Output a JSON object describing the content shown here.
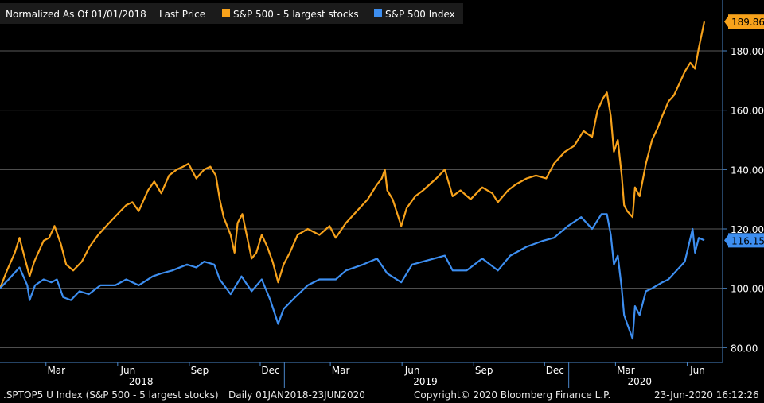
{
  "legend": {
    "prefix": "Normalized As Of 01/01/2018",
    "price_label": "Last Price",
    "series_1": "S&P 500 - 5 largest stocks",
    "series_2": "S&P 500 Index"
  },
  "colors": {
    "series_1": "#f7a21b",
    "series_2": "#3d8ef0",
    "grid": "#5a5a5a",
    "axis": "#4a86c8",
    "text": "#ffffff"
  },
  "footer": {
    "ticker": ".SPTOP5 U Index (S&P 500 - 5 largest stocks)",
    "range": "Daily 01JAN2018-23JUN2020",
    "copyright": "Copyright© 2020 Bloomberg Finance L.P.",
    "timestamp": "23-Jun-2020 16:12:26"
  },
  "chart_data": {
    "type": "line",
    "x_range": [
      "2018-01-01",
      "2020-06-23"
    ],
    "ylim": [
      75,
      195
    ],
    "grid": true,
    "y_ticks": [
      80,
      100,
      120,
      140,
      160,
      180
    ],
    "y_tick_labels": [
      "80.00",
      "100.00",
      "120.00",
      "140.00",
      "160.00",
      "180.00"
    ],
    "x_month_labels": [
      {
        "label": "Mar",
        "date": "2018-03-01"
      },
      {
        "label": "Jun",
        "date": "2018-06-01"
      },
      {
        "label": "Sep",
        "date": "2018-09-01"
      },
      {
        "label": "Dec",
        "date": "2018-12-01"
      },
      {
        "label": "Mar",
        "date": "2019-03-01"
      },
      {
        "label": "Jun",
        "date": "2019-06-01"
      },
      {
        "label": "Sep",
        "date": "2019-09-01"
      },
      {
        "label": "Dec",
        "date": "2019-12-01"
      },
      {
        "label": "Mar",
        "date": "2020-03-01"
      },
      {
        "label": "Jun",
        "date": "2020-06-01"
      }
    ],
    "x_year_labels": [
      {
        "label": "2018",
        "date": "2018-07-01"
      },
      {
        "label": "2019",
        "date": "2019-07-01"
      },
      {
        "label": "2020",
        "date": "2020-04-01"
      }
    ],
    "last_values": {
      "series_1": "189.86",
      "series_2": "116.15"
    },
    "series": [
      {
        "name": "S&P 500 - 5 largest stocks",
        "color": "#f7a21b",
        "points": [
          [
            "2018-01-01",
            100
          ],
          [
            "2018-01-10",
            106
          ],
          [
            "2018-01-20",
            112
          ],
          [
            "2018-01-26",
            117
          ],
          [
            "2018-02-02",
            110
          ],
          [
            "2018-02-08",
            104
          ],
          [
            "2018-02-14",
            109
          ],
          [
            "2018-02-26",
            116
          ],
          [
            "2018-03-05",
            117
          ],
          [
            "2018-03-12",
            121
          ],
          [
            "2018-03-20",
            115
          ],
          [
            "2018-03-27",
            108
          ],
          [
            "2018-04-05",
            106
          ],
          [
            "2018-04-16",
            109
          ],
          [
            "2018-04-26",
            114
          ],
          [
            "2018-05-07",
            118
          ],
          [
            "2018-05-21",
            122
          ],
          [
            "2018-06-01",
            125
          ],
          [
            "2018-06-12",
            128
          ],
          [
            "2018-06-20",
            129
          ],
          [
            "2018-06-28",
            126
          ],
          [
            "2018-07-10",
            133
          ],
          [
            "2018-07-18",
            136
          ],
          [
            "2018-07-27",
            132
          ],
          [
            "2018-08-06",
            138
          ],
          [
            "2018-08-16",
            140
          ],
          [
            "2018-08-24",
            141
          ],
          [
            "2018-08-31",
            142
          ],
          [
            "2018-09-10",
            137
          ],
          [
            "2018-09-20",
            140
          ],
          [
            "2018-09-28",
            141
          ],
          [
            "2018-10-05",
            138
          ],
          [
            "2018-10-10",
            130
          ],
          [
            "2018-10-15",
            124
          ],
          [
            "2018-10-24",
            118
          ],
          [
            "2018-10-29",
            112
          ],
          [
            "2018-11-02",
            122
          ],
          [
            "2018-11-08",
            125
          ],
          [
            "2018-11-20",
            110
          ],
          [
            "2018-11-26",
            112
          ],
          [
            "2018-12-03",
            118
          ],
          [
            "2018-12-10",
            114
          ],
          [
            "2018-12-17",
            109
          ],
          [
            "2018-12-24",
            102
          ],
          [
            "2018-12-31",
            108
          ],
          [
            "2019-01-08",
            112
          ],
          [
            "2019-01-18",
            118
          ],
          [
            "2019-01-31",
            120
          ],
          [
            "2019-02-15",
            118
          ],
          [
            "2019-02-28",
            121
          ],
          [
            "2019-03-08",
            117
          ],
          [
            "2019-03-21",
            122
          ],
          [
            "2019-04-04",
            126
          ],
          [
            "2019-04-18",
            130
          ],
          [
            "2019-04-30",
            135
          ],
          [
            "2019-05-06",
            137
          ],
          [
            "2019-05-10",
            140
          ],
          [
            "2019-05-13",
            133
          ],
          [
            "2019-05-20",
            130
          ],
          [
            "2019-05-31",
            121
          ],
          [
            "2019-06-07",
            127
          ],
          [
            "2019-06-18",
            131
          ],
          [
            "2019-06-28",
            133
          ],
          [
            "2019-07-15",
            137
          ],
          [
            "2019-07-26",
            140
          ],
          [
            "2019-08-05",
            131
          ],
          [
            "2019-08-15",
            133
          ],
          [
            "2019-08-28",
            130
          ],
          [
            "2019-09-12",
            134
          ],
          [
            "2019-09-25",
            132
          ],
          [
            "2019-10-02",
            129
          ],
          [
            "2019-10-15",
            133
          ],
          [
            "2019-10-25",
            135
          ],
          [
            "2019-11-08",
            137
          ],
          [
            "2019-11-20",
            138
          ],
          [
            "2019-12-03",
            137
          ],
          [
            "2019-12-13",
            142
          ],
          [
            "2019-12-27",
            146
          ],
          [
            "2020-01-08",
            148
          ],
          [
            "2020-01-20",
            153
          ],
          [
            "2020-01-31",
            151
          ],
          [
            "2020-02-07",
            160
          ],
          [
            "2020-02-14",
            164
          ],
          [
            "2020-02-19",
            166
          ],
          [
            "2020-02-24",
            158
          ],
          [
            "2020-02-28",
            146
          ],
          [
            "2020-03-04",
            150
          ],
          [
            "2020-03-09",
            138
          ],
          [
            "2020-03-12",
            128
          ],
          [
            "2020-03-16",
            126
          ],
          [
            "2020-03-23",
            124
          ],
          [
            "2020-03-26",
            134
          ],
          [
            "2020-04-01",
            131
          ],
          [
            "2020-04-09",
            142
          ],
          [
            "2020-04-17",
            150
          ],
          [
            "2020-04-24",
            154
          ],
          [
            "2020-04-30",
            158
          ],
          [
            "2020-05-08",
            163
          ],
          [
            "2020-05-15",
            165
          ],
          [
            "2020-05-22",
            169
          ],
          [
            "2020-05-29",
            173
          ],
          [
            "2020-06-05",
            176
          ],
          [
            "2020-06-11",
            174
          ],
          [
            "2020-06-16",
            181
          ],
          [
            "2020-06-23",
            189.86
          ]
        ]
      },
      {
        "name": "S&P 500 Index",
        "color": "#3d8ef0",
        "points": [
          [
            "2018-01-01",
            100
          ],
          [
            "2018-01-12",
            103
          ],
          [
            "2018-01-26",
            107
          ],
          [
            "2018-02-05",
            101
          ],
          [
            "2018-02-08",
            96
          ],
          [
            "2018-02-15",
            101
          ],
          [
            "2018-02-26",
            103
          ],
          [
            "2018-03-08",
            102
          ],
          [
            "2018-03-15",
            103
          ],
          [
            "2018-03-23",
            97
          ],
          [
            "2018-04-02",
            96
          ],
          [
            "2018-04-13",
            99
          ],
          [
            "2018-04-25",
            98
          ],
          [
            "2018-05-10",
            101
          ],
          [
            "2018-05-29",
            101
          ],
          [
            "2018-06-12",
            103
          ],
          [
            "2018-06-28",
            101
          ],
          [
            "2018-07-16",
            104
          ],
          [
            "2018-07-27",
            105
          ],
          [
            "2018-08-10",
            106
          ],
          [
            "2018-08-29",
            108
          ],
          [
            "2018-09-10",
            107
          ],
          [
            "2018-09-20",
            109
          ],
          [
            "2018-10-03",
            108
          ],
          [
            "2018-10-10",
            103
          ],
          [
            "2018-10-24",
            98
          ],
          [
            "2018-11-07",
            104
          ],
          [
            "2018-11-20",
            99
          ],
          [
            "2018-12-03",
            103
          ],
          [
            "2018-12-14",
            96
          ],
          [
            "2018-12-24",
            88
          ],
          [
            "2018-12-31",
            93
          ],
          [
            "2019-01-15",
            97
          ],
          [
            "2019-01-31",
            101
          ],
          [
            "2019-02-15",
            103
          ],
          [
            "2019-03-08",
            103
          ],
          [
            "2019-03-21",
            106
          ],
          [
            "2019-04-12",
            108
          ],
          [
            "2019-04-30",
            110
          ],
          [
            "2019-05-13",
            105
          ],
          [
            "2019-05-31",
            102
          ],
          [
            "2019-06-14",
            108
          ],
          [
            "2019-06-28",
            109
          ],
          [
            "2019-07-26",
            111
          ],
          [
            "2019-08-05",
            106
          ],
          [
            "2019-08-23",
            106
          ],
          [
            "2019-09-12",
            110
          ],
          [
            "2019-10-02",
            106
          ],
          [
            "2019-10-18",
            111
          ],
          [
            "2019-11-08",
            114
          ],
          [
            "2019-11-29",
            116
          ],
          [
            "2019-12-13",
            117
          ],
          [
            "2019-12-31",
            121
          ],
          [
            "2020-01-17",
            124
          ],
          [
            "2020-01-31",
            120
          ],
          [
            "2020-02-12",
            125
          ],
          [
            "2020-02-19",
            125
          ],
          [
            "2020-02-24",
            118
          ],
          [
            "2020-02-28",
            108
          ],
          [
            "2020-03-04",
            111
          ],
          [
            "2020-03-09",
            100
          ],
          [
            "2020-03-12",
            91
          ],
          [
            "2020-03-16",
            88
          ],
          [
            "2020-03-23",
            83
          ],
          [
            "2020-03-26",
            94
          ],
          [
            "2020-04-01",
            91
          ],
          [
            "2020-04-09",
            99
          ],
          [
            "2020-04-17",
            100
          ],
          [
            "2020-04-30",
            102
          ],
          [
            "2020-05-08",
            103
          ],
          [
            "2020-05-15",
            105
          ],
          [
            "2020-05-29",
            109
          ],
          [
            "2020-06-08",
            120
          ],
          [
            "2020-06-11",
            112
          ],
          [
            "2020-06-16",
            117
          ],
          [
            "2020-06-23",
            116.15
          ]
        ]
      }
    ]
  }
}
